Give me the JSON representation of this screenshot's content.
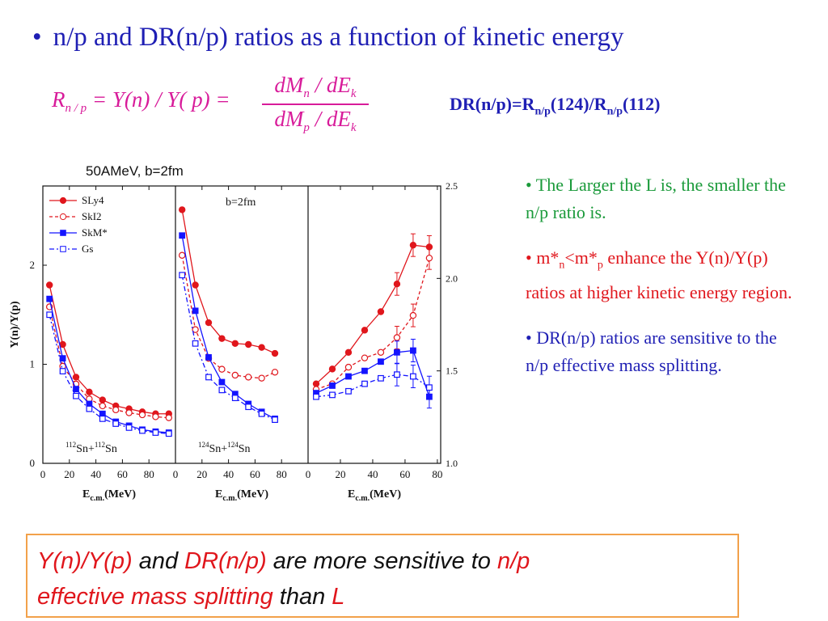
{
  "title": {
    "bullet": "•",
    "text": "n/p and DR(n/p) ratios as a function of kinetic energy"
  },
  "equation": {
    "lhs_R": "R",
    "lhs_sub": "n / p",
    "lhs_rest": " = Y(n) / Y( p) =",
    "num_dM": "dM",
    "num_sub": "n",
    "num_rest": " / dE",
    "num_k": "k",
    "den_dM": "dM",
    "den_sub": "p",
    "den_rest": " / dE",
    "den_k": "k"
  },
  "dr_formula": {
    "a": "DR(n/p)=R",
    "sub1": "n/p",
    "b": "(124)/R",
    "sub2": "n/p",
    "c": "(112)"
  },
  "figure_caption": "50AMeV, b=2fm",
  "bullets": {
    "b1": "• The Larger the L is, the smaller the n/p ratio is.",
    "b2_a": "• m*",
    "b2_sub1": "n",
    "b2_b": "<m*",
    "b2_sub2": "p",
    "b2_c": " enhance the Y(n)/Y(p) ratios at higher kinetic energy region.",
    "b3": "• DR(n/p) ratios are sensitive to the n/p effective mass splitting."
  },
  "conclusion": {
    "p1": "Y(n)/Y(p)",
    "p2": " and ",
    "p3": "DR(n/p)",
    "p4": " are more sensitive to ",
    "p5": "n/p",
    "p6": "effective mass splitting",
    "p7": "  than ",
    "p8": "L"
  },
  "colors": {
    "red": "#e0161c",
    "blue": "#1414ff",
    "title_blue": "#1f1fb4",
    "green": "#1a9a3a",
    "magenta": "#d81b9a",
    "orange": "#f2a14a"
  },
  "chart_data": [
    {
      "type": "line",
      "panel": "112Sn+112Sn",
      "annotation_a": "112",
      "annotation_b": "Sn+",
      "annotation_c": "112",
      "annotation_d": "Sn",
      "ylabel": "Y(n)/Y(p)",
      "xlabel": "E_c.m.(MeV)",
      "xlabel_main": "E",
      "xlabel_sub": "c.m.",
      "xlabel_unit": "(MeV)",
      "xlim": [
        0,
        100
      ],
      "ylim": [
        0,
        2.8
      ],
      "xticks": [
        "0",
        "20",
        "40",
        "60",
        "80"
      ],
      "yticks": [
        "0",
        "1",
        "2"
      ],
      "legend": [
        "SLy4",
        "SkI2",
        "SkM*",
        "Gs"
      ],
      "x": [
        5,
        15,
        25,
        35,
        45,
        55,
        65,
        75,
        85,
        95
      ],
      "series": [
        {
          "name": "SLy4",
          "values": [
            1.8,
            1.2,
            0.87,
            0.72,
            0.64,
            0.58,
            0.55,
            0.52,
            0.5,
            0.5
          ]
        },
        {
          "name": "SkI2",
          "values": [
            1.58,
            0.98,
            0.8,
            0.65,
            0.58,
            0.54,
            0.51,
            0.49,
            0.47,
            0.46
          ]
        },
        {
          "name": "SkM*",
          "values": [
            1.66,
            1.06,
            0.75,
            0.6,
            0.5,
            0.42,
            0.38,
            0.34,
            0.32,
            0.31
          ]
        },
        {
          "name": "Gs",
          "values": [
            1.5,
            0.93,
            0.68,
            0.55,
            0.45,
            0.4,
            0.36,
            0.33,
            0.31,
            0.3
          ]
        }
      ]
    },
    {
      "type": "line",
      "panel": "124Sn+124Sn",
      "annotation_a": "124",
      "annotation_b": "Sn+",
      "annotation_c": "124",
      "annotation_d": "Sn",
      "label": "b=2fm",
      "xlabel": "E_c.m.(MeV)",
      "xlabel_main": "E",
      "xlabel_sub": "c.m.",
      "xlabel_unit": "(MeV)",
      "xlim": [
        0,
        100
      ],
      "ylim": [
        0,
        2.8
      ],
      "xticks": [
        "0",
        "20",
        "40",
        "60",
        "80"
      ],
      "x": [
        5,
        15,
        25,
        35,
        45,
        55,
        65,
        75
      ],
      "series": [
        {
          "name": "SLy4",
          "values": [
            2.56,
            1.8,
            1.42,
            1.26,
            1.21,
            1.2,
            1.17,
            1.11
          ]
        },
        {
          "name": "SkI2",
          "values": [
            2.1,
            1.35,
            1.06,
            0.95,
            0.89,
            0.87,
            0.86,
            0.92
          ]
        },
        {
          "name": "SkM*",
          "values": [
            2.3,
            1.54,
            1.07,
            0.82,
            0.7,
            0.6,
            0.52,
            0.45
          ]
        },
        {
          "name": "Gs",
          "values": [
            1.9,
            1.21,
            0.87,
            0.74,
            0.66,
            0.57,
            0.5,
            0.44
          ]
        }
      ]
    },
    {
      "type": "line",
      "panel": "DR(n/p)",
      "xlabel": "E_c.m.(MeV)",
      "xlabel_main": "E",
      "xlabel_sub": "c.m.",
      "xlabel_unit": "(MeV)",
      "xlim": [
        0,
        80
      ],
      "ylim": [
        1.0,
        2.5
      ],
      "xticks": [
        "0",
        "20",
        "40",
        "60",
        "80"
      ],
      "yticks": [
        "1.0",
        "1.5",
        "2.0",
        "2.5"
      ],
      "x": [
        5,
        15,
        25,
        35,
        45,
        55,
        65,
        75
      ],
      "series": [
        {
          "name": "SLy4",
          "values": [
            1.43,
            1.51,
            1.6,
            1.72,
            1.82,
            1.97,
            2.18,
            2.17
          ]
        },
        {
          "name": "SkI2",
          "values": [
            1.4,
            1.43,
            1.52,
            1.57,
            1.6,
            1.68,
            1.8,
            2.11
          ]
        },
        {
          "name": "SkM*",
          "values": [
            1.38,
            1.42,
            1.47,
            1.5,
            1.55,
            1.6,
            1.61,
            1.36
          ]
        },
        {
          "name": "Gs",
          "values": [
            1.36,
            1.37,
            1.39,
            1.43,
            1.46,
            1.48,
            1.47,
            1.41
          ]
        }
      ]
    }
  ]
}
